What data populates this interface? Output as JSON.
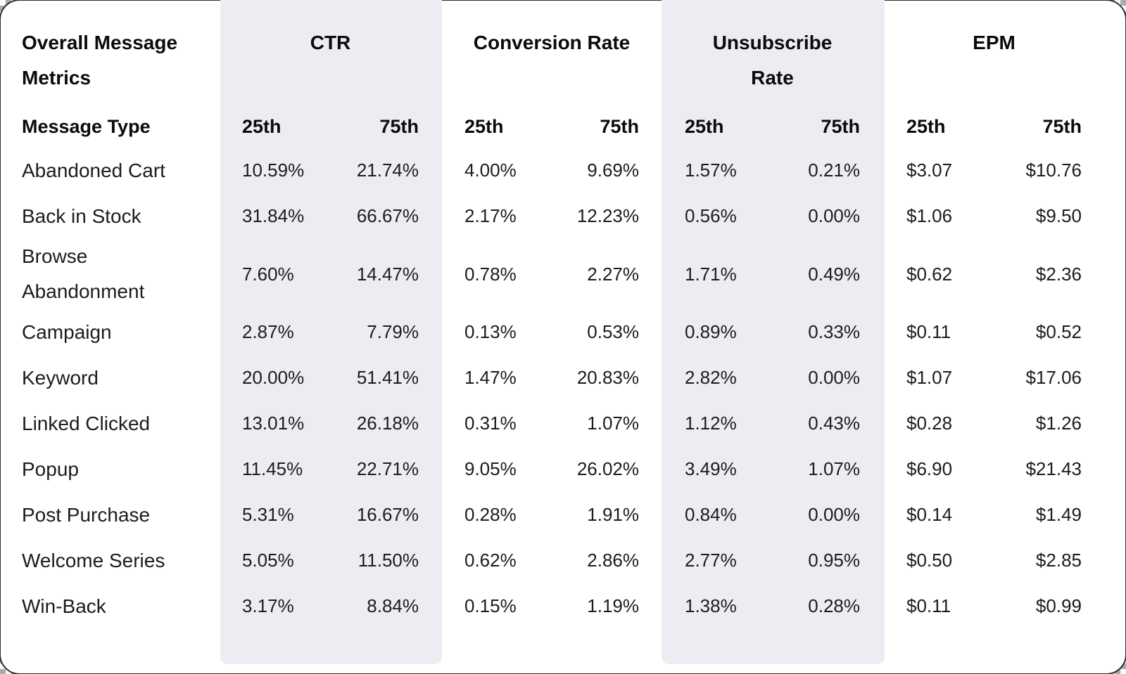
{
  "chart_data": {
    "type": "table",
    "title": "Overall Message Metrics",
    "row_header": "Message Type",
    "column_groups": [
      "CTR",
      "Conversion Rate",
      "Unsubscribe Rate",
      "EPM"
    ],
    "sub_columns": [
      "25th",
      "75th"
    ],
    "striped_groups": [
      "CTR",
      "Unsubscribe Rate"
    ],
    "rows": [
      {
        "label": "Abandoned Cart",
        "ctr": [
          "10.59%",
          "21.74%"
        ],
        "conversion_rate": [
          "4.00%",
          "9.69%"
        ],
        "unsubscribe_rate": [
          "1.57%",
          "0.21%"
        ],
        "epm": [
          "$3.07",
          "$10.76"
        ]
      },
      {
        "label": "Back in Stock",
        "ctr": [
          "31.84%",
          "66.67%"
        ],
        "conversion_rate": [
          "2.17%",
          "12.23%"
        ],
        "unsubscribe_rate": [
          "0.56%",
          "0.00%"
        ],
        "epm": [
          "$1.06",
          "$9.50"
        ]
      },
      {
        "label": "Browse Abandonment",
        "ctr": [
          "7.60%",
          "14.47%"
        ],
        "conversion_rate": [
          "0.78%",
          "2.27%"
        ],
        "unsubscribe_rate": [
          "1.71%",
          "0.49%"
        ],
        "epm": [
          "$0.62",
          "$2.36"
        ]
      },
      {
        "label": "Campaign",
        "ctr": [
          "2.87%",
          "7.79%"
        ],
        "conversion_rate": [
          "0.13%",
          "0.53%"
        ],
        "unsubscribe_rate": [
          "0.89%",
          "0.33%"
        ],
        "epm": [
          "$0.11",
          "$0.52"
        ]
      },
      {
        "label": "Keyword",
        "ctr": [
          "20.00%",
          "51.41%"
        ],
        "conversion_rate": [
          "1.47%",
          "20.83%"
        ],
        "unsubscribe_rate": [
          "2.82%",
          "0.00%"
        ],
        "epm": [
          "$1.07",
          "$17.06"
        ]
      },
      {
        "label": "Linked Clicked",
        "ctr": [
          "13.01%",
          "26.18%"
        ],
        "conversion_rate": [
          "0.31%",
          "1.07%"
        ],
        "unsubscribe_rate": [
          "1.12%",
          "0.43%"
        ],
        "epm": [
          "$0.28",
          "$1.26"
        ]
      },
      {
        "label": "Popup",
        "ctr": [
          "11.45%",
          "22.71%"
        ],
        "conversion_rate": [
          "9.05%",
          "26.02%"
        ],
        "unsubscribe_rate": [
          "3.49%",
          "1.07%"
        ],
        "epm": [
          "$6.90",
          "$21.43"
        ]
      },
      {
        "label": "Post Purchase",
        "ctr": [
          "5.31%",
          "16.67%"
        ],
        "conversion_rate": [
          "0.28%",
          "1.91%"
        ],
        "unsubscribe_rate": [
          "0.84%",
          "0.00%"
        ],
        "epm": [
          "$0.14",
          "$1.49"
        ]
      },
      {
        "label": "Welcome Series",
        "ctr": [
          "5.05%",
          "11.50%"
        ],
        "conversion_rate": [
          "0.62%",
          "2.86%"
        ],
        "unsubscribe_rate": [
          "2.77%",
          "0.95%"
        ],
        "epm": [
          "$0.50",
          "$2.85"
        ]
      },
      {
        "label": "Win-Back",
        "ctr": [
          "3.17%",
          "8.84%"
        ],
        "conversion_rate": [
          "0.15%",
          "1.19%"
        ],
        "unsubscribe_rate": [
          "1.38%",
          "0.28%"
        ],
        "epm": [
          "$0.11",
          "$0.99"
        ]
      }
    ]
  },
  "style": {
    "stripe_color": "#ECECF3",
    "card_color": "#FFFFFF",
    "text_color": "#1C1C20",
    "heading_color": "#0B0B0E"
  }
}
